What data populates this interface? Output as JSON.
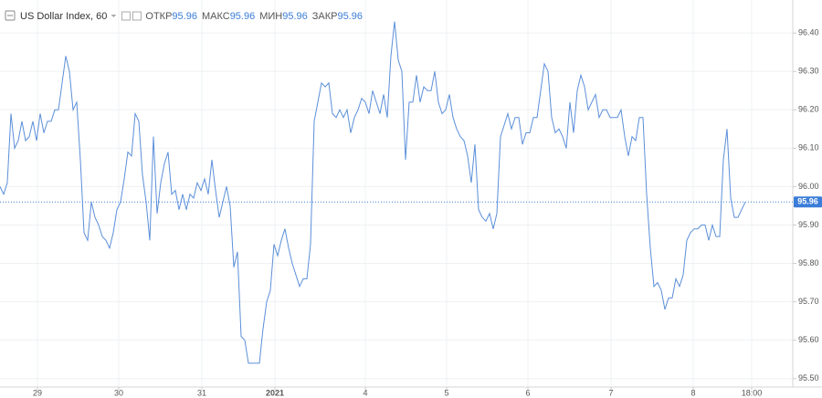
{
  "chart_data": {
    "type": "line",
    "title": "US Dollar Index, 60",
    "stats": [
      {
        "label": "ОТКР",
        "value": 95.96
      },
      {
        "label": "МАКС",
        "value": 95.96
      },
      {
        "label": "МИН",
        "value": 95.96
      },
      {
        "label": "ЗАКР",
        "value": 95.96
      }
    ],
    "last_price": 95.96,
    "color": "#5b8fd9",
    "values": [
      96.0,
      95.98,
      96.01,
      96.19,
      96.1,
      96.12,
      96.17,
      96.12,
      96.13,
      96.17,
      96.12,
      96.19,
      96.14,
      96.17,
      96.17,
      96.2,
      96.2,
      96.27,
      96.34,
      96.3,
      96.2,
      96.22,
      96.07,
      95.88,
      95.86,
      95.96,
      95.92,
      95.9,
      95.87,
      95.86,
      95.84,
      95.88,
      95.94,
      95.96,
      96.02,
      96.09,
      96.08,
      96.19,
      96.17,
      96.03,
      95.96,
      95.86,
      96.13,
      95.93,
      96.01,
      96.06,
      96.09,
      95.98,
      95.99,
      95.94,
      95.98,
      95.94,
      95.98,
      95.97,
      96.01,
      95.99,
      96.02,
      95.98,
      96.07,
      95.99,
      95.92,
      95.96,
      96.0,
      95.95,
      95.79,
      95.83,
      95.61,
      95.6,
      95.54,
      95.54,
      95.54,
      95.54,
      95.63,
      95.7,
      95.73,
      95.85,
      95.82,
      95.86,
      95.89,
      95.84,
      95.8,
      95.77,
      95.74,
      95.76,
      95.76,
      95.85,
      96.17,
      96.22,
      96.27,
      96.26,
      96.27,
      96.19,
      96.18,
      96.2,
      96.18,
      96.2,
      96.14,
      96.18,
      96.2,
      96.23,
      96.22,
      96.19,
      96.25,
      96.22,
      96.19,
      96.24,
      96.18,
      96.34,
      96.43,
      96.33,
      96.3,
      96.07,
      96.22,
      96.22,
      96.29,
      96.22,
      96.26,
      96.25,
      96.25,
      96.3,
      96.22,
      96.19,
      96.2,
      96.24,
      96.18,
      96.15,
      96.13,
      96.12,
      96.08,
      96.01,
      96.11,
      95.94,
      95.92,
      95.91,
      95.93,
      95.89,
      95.93,
      96.13,
      96.16,
      96.19,
      96.15,
      96.18,
      96.18,
      96.11,
      96.14,
      96.14,
      96.18,
      96.18,
      96.25,
      96.32,
      96.3,
      96.18,
      96.14,
      96.15,
      96.13,
      96.1,
      96.22,
      96.14,
      96.25,
      96.29,
      96.26,
      96.2,
      96.22,
      96.24,
      96.18,
      96.2,
      96.2,
      96.18,
      96.18,
      96.18,
      96.2,
      96.13,
      96.08,
      96.13,
      96.12,
      96.18,
      96.18,
      95.98,
      95.84,
      95.74,
      95.75,
      95.73,
      95.68,
      95.71,
      95.71,
      95.76,
      95.74,
      95.77,
      95.86,
      95.88,
      95.89,
      95.89,
      95.9,
      95.9,
      95.86,
      95.9,
      95.87,
      95.87,
      96.07,
      96.15,
      95.97,
      95.92,
      95.92,
      95.94,
      95.96
    ],
    "xlim": [
      0,
      217
    ],
    "xticks": [
      {
        "value": 10.25,
        "label": "29"
      },
      {
        "value": 32.5,
        "label": "30"
      },
      {
        "value": 55.25,
        "label": "31"
      },
      {
        "value": 75.25,
        "label": "2021"
      },
      {
        "value": 100,
        "label": "4"
      },
      {
        "value": 122.25,
        "label": "5"
      },
      {
        "value": 144.5,
        "label": "6"
      },
      {
        "value": 167.25,
        "label": "7"
      },
      {
        "value": 189.75,
        "label": "8"
      },
      {
        "value": 205.75,
        "label": "18:00"
      }
    ],
    "ylim": [
      95.478,
      96.486
    ],
    "yticks": [
      {
        "value": 95.5,
        "label": "95.50"
      },
      {
        "value": 95.6,
        "label": "95.60"
      },
      {
        "value": 95.7,
        "label": "95.70"
      },
      {
        "value": 95.8,
        "label": "95.80"
      },
      {
        "value": 95.9,
        "label": "95.90"
      },
      {
        "value": 96.0,
        "label": "96.00"
      },
      {
        "value": 96.1,
        "label": "96.10"
      },
      {
        "value": 96.2,
        "label": "96.20"
      },
      {
        "value": 96.3,
        "label": "96.30"
      },
      {
        "value": 96.4,
        "label": "96.40"
      }
    ],
    "grid": true
  }
}
